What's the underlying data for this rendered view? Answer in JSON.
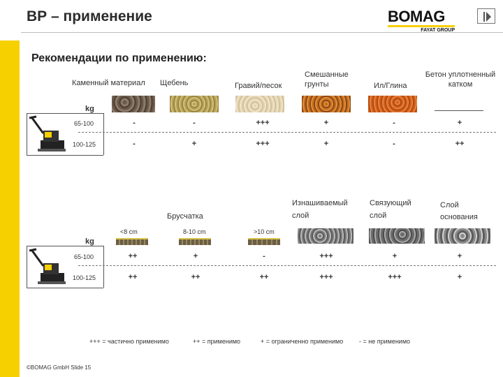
{
  "slide": {
    "title": "ВР – применение",
    "subtitle": "Рекомендации по применению:",
    "footer": "©BOMAG GmbH Slide 15"
  },
  "logo": {
    "word": "BOMAG",
    "tagline": "FAYAT GROUP"
  },
  "colors": {
    "accent": "#f7d000"
  },
  "table1": {
    "unit_label": "kg",
    "headers": {
      "stone": "Каменный материал",
      "crushed": "Щебень",
      "gravel": "Гравий/песок",
      "mixed": "Смешанные грунты",
      "silt": "Ил/Глина",
      "concrete": "Бетон уплотненный катком"
    },
    "rows": [
      {
        "label": "65-100",
        "values": [
          "-",
          "-",
          "+++",
          "+",
          "-",
          "+"
        ]
      },
      {
        "label": "100-125",
        "values": [
          "-",
          "+",
          "+++",
          "+",
          "-",
          "++"
        ]
      }
    ]
  },
  "table2": {
    "unit_label": "kg",
    "headers": {
      "paving": "Брусчатка",
      "wear": "Изнашиваемый слой",
      "binder": "Связующий слой",
      "base": "Слой основания"
    },
    "sizes": [
      "<8 cm",
      "8-10 cm",
      ">10 cm"
    ],
    "rows": [
      {
        "label": "65-100",
        "values": [
          "++",
          "+",
          "-",
          "+++",
          "+",
          "+"
        ]
      },
      {
        "label": "100-125",
        "values": [
          "++",
          "++",
          "++",
          "+++",
          "+++",
          "+"
        ]
      }
    ]
  },
  "legend": {
    "triple": "+++ = частично применимо",
    "double": "++ = применимо",
    "single": "+ = ограниченно применимо",
    "minus": "- = не применимо"
  }
}
